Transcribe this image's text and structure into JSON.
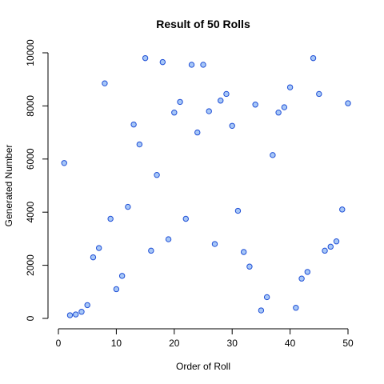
{
  "chart_data": {
    "type": "scatter",
    "title": "Result of 50 Rolls",
    "xlabel": "Order of Roll",
    "ylabel": "Generated Number",
    "xlim": [
      0,
      50
    ],
    "ylim": [
      0,
      10000
    ],
    "xticks": [
      0,
      10,
      20,
      30,
      40,
      50
    ],
    "yticks": [
      0,
      2000,
      4000,
      6000,
      8000,
      10000
    ],
    "grid": false,
    "legend": "none",
    "marker": "circle",
    "marker_fill": "#a7c7f7",
    "marker_stroke": "#1f4fd6",
    "x": [
      1,
      2,
      3,
      4,
      5,
      6,
      7,
      8,
      9,
      10,
      11,
      12,
      13,
      14,
      15,
      16,
      17,
      18,
      19,
      20,
      21,
      22,
      23,
      24,
      25,
      26,
      27,
      28,
      29,
      30,
      31,
      32,
      33,
      34,
      35,
      36,
      37,
      38,
      39,
      40,
      41,
      42,
      43,
      44,
      45,
      46,
      47,
      48,
      49,
      50
    ],
    "y": [
      5850,
      120,
      150,
      250,
      500,
      2300,
      2650,
      8850,
      3750,
      1100,
      1600,
      4200,
      7300,
      6550,
      9800,
      2550,
      5400,
      9650,
      2980,
      7750,
      8150,
      3750,
      9550,
      7000,
      9550,
      7800,
      2800,
      8200,
      8450,
      7250,
      4050,
      2500,
      1950,
      8050,
      300,
      800,
      6150,
      7750,
      7950,
      8700,
      400,
      1500,
      1750,
      9800,
      8450,
      2550,
      2700,
      2900,
      4100,
      8100
    ]
  }
}
